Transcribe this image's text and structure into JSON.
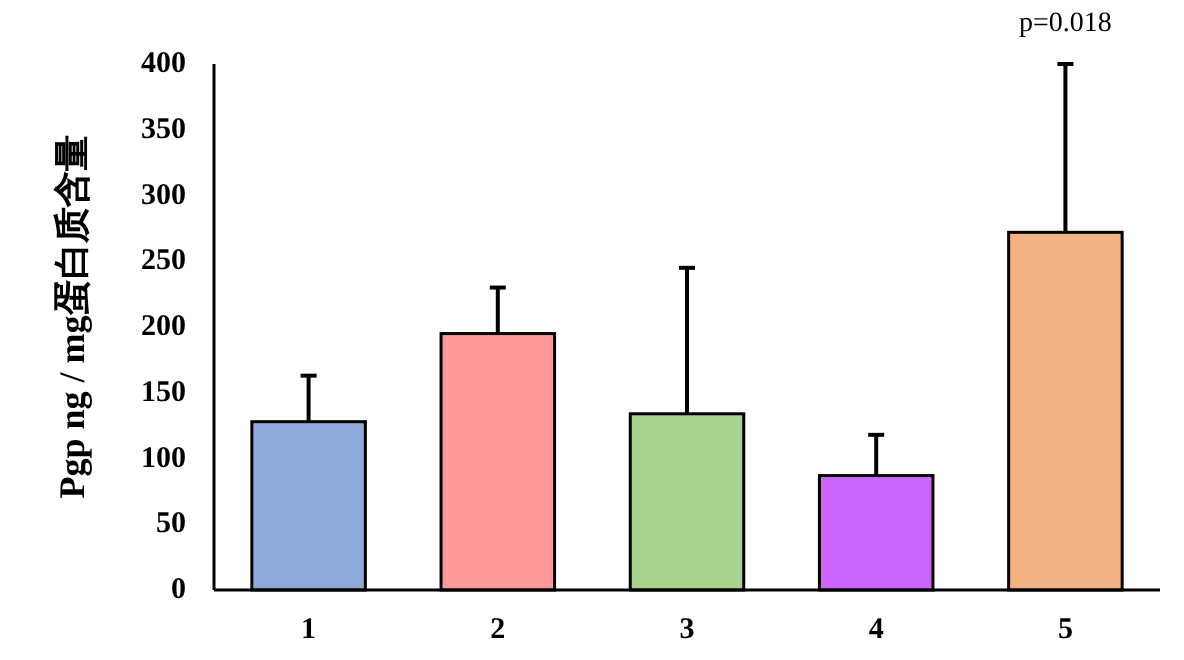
{
  "chart_data": {
    "type": "bar",
    "ylabel": "Pgp ng / mg蛋白质含量",
    "categories": [
      "1",
      "2",
      "3",
      "4",
      "5"
    ],
    "values": [
      128,
      195,
      134,
      87,
      272
    ],
    "errors": [
      [
        128,
        163
      ],
      [
        195,
        230
      ],
      [
        134,
        245
      ],
      [
        87,
        118
      ],
      [
        272,
        400
      ]
    ],
    "colors": [
      "#8eaadb",
      "#ff9999",
      "#a9d18e",
      "#cc66ff",
      "#f4b183"
    ],
    "ylim": [
      0,
      400
    ],
    "yticks": [
      0,
      50,
      100,
      150,
      200,
      250,
      300,
      350,
      400
    ],
    "annotations": [
      {
        "text": "p=0.018",
        "x": "5",
        "y": 400
      }
    ]
  }
}
